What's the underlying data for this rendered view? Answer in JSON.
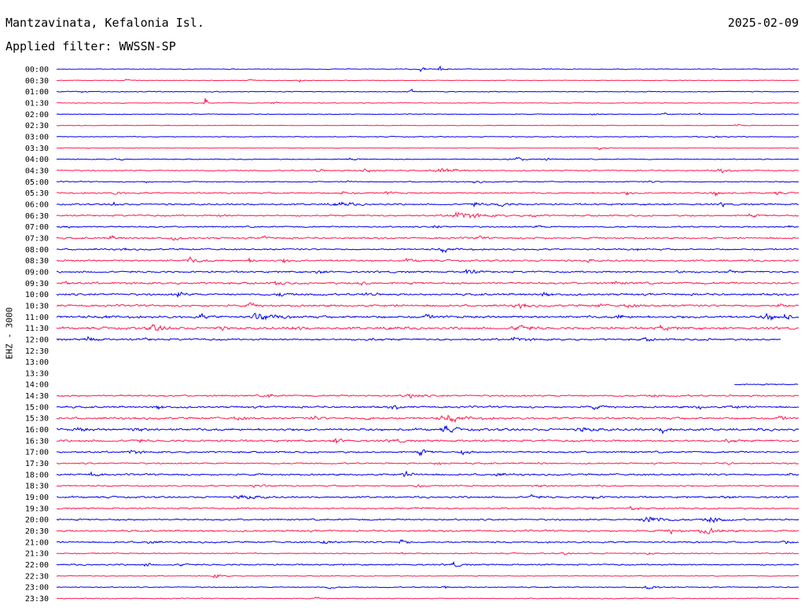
{
  "header": {
    "station": "Mantzavinata, Kefalonia Isl.",
    "date": "2025-02-09",
    "filter_label": "Applied filter: WWSSN-SP"
  },
  "chart_data": {
    "type": "helicorder",
    "ylabel": "EHZ - 3000",
    "row_labels": [
      "00:00",
      "00:30",
      "01:00",
      "01:30",
      "02:00",
      "02:30",
      "03:00",
      "03:30",
      "04:00",
      "04:30",
      "05:00",
      "05:30",
      "06:00",
      "06:30",
      "07:00",
      "07:30",
      "08:00",
      "08:30",
      "09:00",
      "09:30",
      "10:00",
      "10:30",
      "11:00",
      "11:30",
      "12:00",
      "12:30",
      "13:00",
      "13:30",
      "14:00",
      "14:30",
      "15:00",
      "15:30",
      "16:00",
      "16:30",
      "17:00",
      "17:30",
      "18:00",
      "18:30",
      "19:00",
      "19:30",
      "20:00",
      "20:30",
      "21:00",
      "21:30",
      "22:00",
      "22:30",
      "23:00",
      "23:30"
    ],
    "colors": [
      "#0000ee",
      "#ff1a4d"
    ],
    "minutes_per_row": 30,
    "gap": {
      "start_row": 24,
      "start_minute": 29.3,
      "end_row": 28,
      "end_minute": 27.4
    },
    "rows": [
      {
        "noise": 0.5,
        "events": [
          [
            14.7,
            2.5,
            0.8
          ],
          [
            15.5,
            3,
            1
          ]
        ]
      },
      {
        "noise": 0.4,
        "events": [
          [
            2.8,
            2,
            0.6
          ],
          [
            7.8,
            2,
            0.5
          ],
          [
            9.8,
            2,
            0.6
          ]
        ]
      },
      {
        "noise": 0.6,
        "events": [
          [
            1,
            1.5,
            0.8
          ],
          [
            14.3,
            2.5,
            0.8
          ]
        ]
      },
      {
        "noise": 0.5,
        "events": [
          [
            8.7,
            2,
            0.6
          ],
          [
            6,
            1,
            3
          ]
        ]
      },
      {
        "noise": 0.5,
        "events": [
          [
            21.7,
            2,
            0.8
          ],
          [
            24.6,
            2,
            0.7
          ],
          [
            26,
            1.5,
            0.6
          ]
        ]
      },
      {
        "noise": 0.4,
        "events": [
          [
            27.5,
            3,
            0.5
          ]
        ]
      },
      {
        "noise": 0.6,
        "events": [
          [
            26.6,
            3,
            0.6
          ]
        ]
      },
      {
        "noise": 0.3,
        "events": [
          [
            21.9,
            3,
            1
          ]
        ]
      },
      {
        "noise": 0.6,
        "events": [
          [
            2.4,
            2.5,
            0.6
          ],
          [
            11.8,
            2,
            0.6
          ],
          [
            18.5,
            6,
            0.7
          ],
          [
            19.8,
            2,
            0.5
          ]
        ]
      },
      {
        "noise": 0.8,
        "events": [
          [
            10.5,
            3,
            0.6
          ],
          [
            12.4,
            6,
            0.8
          ],
          [
            15.5,
            7,
            0.9
          ],
          [
            26.8,
            4,
            0.7
          ]
        ]
      },
      {
        "noise": 0.7,
        "events": [
          [
            3.5,
            2,
            0.5
          ],
          [
            11.8,
            2,
            0.5
          ],
          [
            16.9,
            3,
            0.6
          ],
          [
            24,
            2,
            0.5
          ]
        ]
      },
      {
        "noise": 1,
        "events": [
          [
            2.4,
            3,
            0.6
          ],
          [
            11.5,
            4,
            0.7
          ],
          [
            13.3,
            3,
            0.6
          ],
          [
            23,
            3,
            0.6
          ],
          [
            26.6,
            4,
            0.9
          ],
          [
            29.1,
            2,
            0.6
          ]
        ]
      },
      {
        "noise": 1.1,
        "events": [
          [
            2.3,
            3,
            0.8
          ],
          [
            11.3,
            6,
            1.1
          ],
          [
            16.8,
            4,
            0.8
          ],
          [
            17.9,
            3,
            0.9
          ],
          [
            26.9,
            2,
            0.7
          ]
        ]
      },
      {
        "noise": 1.1,
        "events": [
          [
            6.6,
            2,
            0.6
          ],
          [
            16.2,
            10,
            1.4
          ],
          [
            19.2,
            3,
            0.6
          ],
          [
            28,
            3,
            0.5
          ]
        ]
      },
      {
        "noise": 1,
        "events": [
          [
            0.4,
            2,
            0.5
          ],
          [
            15.3,
            3,
            0.6
          ],
          [
            19.4,
            3,
            0.5
          ],
          [
            29.6,
            2,
            0.7
          ]
        ]
      },
      {
        "noise": 1.2,
        "events": [
          [
            2.2,
            4,
            0.6
          ],
          [
            4.7,
            3,
            0.7
          ],
          [
            8.3,
            3,
            0.6
          ],
          [
            17,
            3,
            0.6
          ],
          [
            19.4,
            2,
            0.6
          ]
        ]
      },
      {
        "noise": 1.1,
        "events": [
          [
            2.7,
            2,
            0.5
          ],
          [
            15.6,
            5,
            0.9
          ],
          [
            23.5,
            2,
            0.5
          ]
        ]
      },
      {
        "noise": 1.2,
        "events": [
          [
            5.4,
            6,
            0.8
          ],
          [
            7.8,
            3,
            0.7
          ],
          [
            9.2,
            3,
            0.7
          ],
          [
            14.2,
            4,
            0.6
          ],
          [
            21.5,
            2,
            0.6
          ]
        ]
      },
      {
        "noise": 1.2,
        "events": [
          [
            10.5,
            3,
            0.8
          ],
          [
            16.6,
            4,
            1
          ],
          [
            25.1,
            3,
            0.6
          ],
          [
            27.2,
            2,
            0.6
          ]
        ]
      },
      {
        "noise": 1.4,
        "events": [
          [
            0.3,
            2,
            0.8
          ],
          [
            8.9,
            3,
            0.9
          ],
          [
            12.3,
            3,
            0.8
          ],
          [
            22.6,
            3,
            0.6
          ]
        ]
      },
      {
        "noise": 1.4,
        "events": [
          [
            4.9,
            3,
            1
          ],
          [
            9,
            3,
            0.8
          ],
          [
            12.5,
            3,
            0.8
          ],
          [
            19.7,
            3,
            0.8
          ]
        ]
      },
      {
        "noise": 1.4,
        "events": [
          [
            7.8,
            3,
            0.8
          ],
          [
            18.7,
            5,
            0.8
          ],
          [
            21.9,
            2,
            0.7
          ],
          [
            23.1,
            3,
            0.8
          ],
          [
            29.2,
            2,
            1
          ]
        ]
      },
      {
        "noise": 1.6,
        "events": [
          [
            2,
            2,
            0.8
          ],
          [
            5.8,
            3,
            0.8
          ],
          [
            8.1,
            8,
            1.4
          ],
          [
            14.9,
            3,
            1
          ],
          [
            22.7,
            3,
            0.9
          ],
          [
            28.7,
            4,
            1.4
          ],
          [
            29.4,
            2,
            2.6
          ]
        ]
      },
      {
        "noise": 1.6,
        "events": [
          [
            3.9,
            6,
            1.2
          ],
          [
            6.5,
            3,
            0.8
          ],
          [
            9.6,
            3,
            1
          ],
          [
            13.4,
            3,
            0.9
          ],
          [
            18.6,
            5,
            1.3
          ],
          [
            24.4,
            4,
            0.9
          ]
        ]
      },
      {
        "noise": 1.3,
        "events": [
          [
            1.3,
            3,
            1.2
          ],
          [
            3.6,
            2,
            0.6
          ],
          [
            12.6,
            3,
            0.6
          ],
          [
            18.5,
            4,
            0.9
          ],
          [
            23.8,
            3,
            0.6
          ],
          [
            26.4,
            2,
            0.5
          ]
        ]
      },
      {
        "noise": 0,
        "events": []
      },
      {
        "noise": 0,
        "events": []
      },
      {
        "noise": 0,
        "events": []
      },
      {
        "noise": 0.8,
        "events": []
      },
      {
        "noise": 1.2,
        "events": [
          [
            8.5,
            3,
            0.9
          ],
          [
            14.2,
            4,
            1.3
          ],
          [
            24.1,
            2,
            0.6
          ]
        ]
      },
      {
        "noise": 1.3,
        "events": [
          [
            4.1,
            3,
            0.8
          ],
          [
            13.6,
            3,
            0.8
          ],
          [
            21.6,
            4,
            0.8
          ],
          [
            25.9,
            3,
            0.8
          ],
          [
            27.3,
            3,
            0.8
          ]
        ]
      },
      {
        "noise": 1.4,
        "events": [
          [
            7.3,
            3,
            0.9
          ],
          [
            10.4,
            3,
            0.8
          ],
          [
            12.5,
            3,
            0.9
          ],
          [
            15.8,
            8,
            1.3
          ],
          [
            29.2,
            3,
            0.8
          ]
        ]
      },
      {
        "noise": 1.6,
        "events": [
          [
            0.9,
            3,
            0.8
          ],
          [
            3.2,
            3,
            0.9
          ],
          [
            15.7,
            4,
            1.2
          ],
          [
            21.3,
            4,
            0.9
          ],
          [
            24.5,
            4,
            1
          ]
        ]
      },
      {
        "noise": 1.4,
        "events": [
          [
            3.2,
            3,
            0.7
          ],
          [
            11.3,
            4,
            0.9
          ],
          [
            13.6,
            3,
            0.7
          ],
          [
            27.1,
            3,
            0.7
          ]
        ]
      },
      {
        "noise": 1.2,
        "events": [
          [
            3,
            3,
            0.9
          ],
          [
            14.7,
            4,
            0.9
          ],
          [
            16.4,
            3,
            0.7
          ]
        ]
      },
      {
        "noise": 1,
        "events": [
          [
            15.4,
            3,
            0.8
          ],
          [
            19.5,
            2,
            0.6
          ],
          [
            27.1,
            2,
            0.6
          ]
        ]
      },
      {
        "noise": 1.2,
        "events": [
          [
            1.4,
            3,
            0.8
          ],
          [
            14.1,
            4,
            0.9
          ],
          [
            17.8,
            3,
            0.6
          ],
          [
            29.6,
            2,
            0.6
          ]
        ]
      },
      {
        "noise": 1,
        "events": [
          [
            8,
            4,
            0.6
          ],
          [
            14.5,
            3,
            0.7
          ],
          [
            19.4,
            3,
            0.6
          ]
        ]
      },
      {
        "noise": 1.2,
        "events": [
          [
            7.5,
            6,
            1
          ],
          [
            19.2,
            3,
            0.8
          ],
          [
            21.7,
            3,
            0.7
          ],
          [
            26.9,
            3,
            0.6
          ]
        ]
      },
      {
        "noise": 1,
        "events": [
          [
            14.6,
            3,
            0.6
          ],
          [
            23.2,
            3,
            0.8
          ]
        ]
      },
      {
        "noise": 1.1,
        "events": [
          [
            23.9,
            6,
            2
          ],
          [
            26.4,
            5,
            1.3
          ]
        ]
      },
      {
        "noise": 1.2,
        "events": [
          [
            24.8,
            4,
            0.9
          ],
          [
            26.2,
            6,
            1.4
          ]
        ]
      },
      {
        "noise": 1.1,
        "events": [
          [
            3.7,
            3,
            0.8
          ],
          [
            10.8,
            3,
            0.8
          ],
          [
            13.9,
            3,
            1
          ],
          [
            29.4,
            2,
            1
          ]
        ]
      },
      {
        "noise": 0.8,
        "events": [
          [
            13.9,
            2,
            0.5
          ],
          [
            20.5,
            2,
            0.5
          ],
          [
            23.9,
            2,
            0.5
          ]
        ]
      },
      {
        "noise": 1,
        "events": [
          [
            3.6,
            2,
            0.9
          ],
          [
            5,
            2,
            0.8
          ],
          [
            16,
            3,
            1
          ]
        ]
      },
      {
        "noise": 0.5,
        "events": [
          [
            6.4,
            3,
            1
          ]
        ]
      },
      {
        "noise": 0.7,
        "events": [
          [
            11,
            3,
            0.6
          ],
          [
            15.7,
            2,
            0.6
          ],
          [
            23.9,
            4,
            0.9
          ]
        ]
      },
      {
        "noise": 0.6,
        "events": [
          [
            10.5,
            2,
            0.5
          ]
        ]
      }
    ]
  }
}
